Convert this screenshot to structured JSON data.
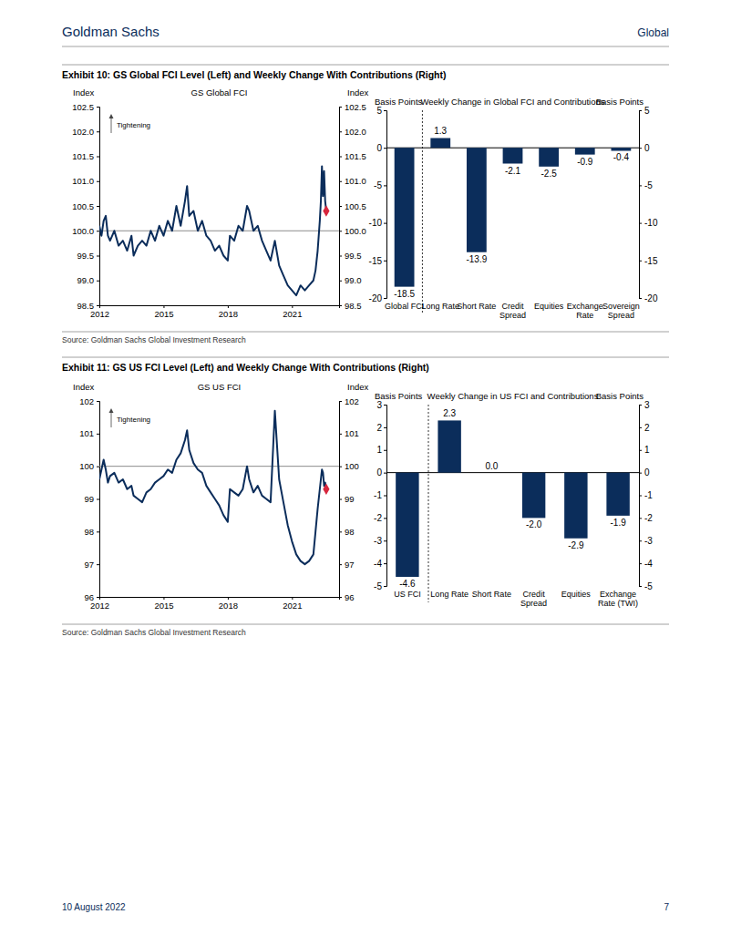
{
  "page": {
    "brand": "Goldman Sachs",
    "section": "Global",
    "date": "10 August 2022",
    "page_number": "7"
  },
  "exhibits": [
    {
      "title": "Exhibit 10: GS Global FCI Level (Left) and Weekly Change With Contributions (Right)",
      "source": "Source: Goldman Sachs Global Investment Research"
    },
    {
      "title": "Exhibit 11: GS US FCI Level (Left) and Weekly Change With Contributions (Right)",
      "source": "Source: Goldman Sachs Global Investment Research"
    }
  ],
  "chart_data": [
    {
      "type": "line",
      "title": "GS Global FCI",
      "ylabel": "Index",
      "y2label": "Index",
      "annotation": "Tightening",
      "x": [
        2012.0,
        2012.1,
        2012.2,
        2012.3,
        2012.4,
        2012.5,
        2012.7,
        2012.9,
        2013.1,
        2013.3,
        2013.5,
        2013.6,
        2013.8,
        2014.0,
        2014.2,
        2014.4,
        2014.6,
        2014.8,
        2015.0,
        2015.2,
        2015.4,
        2015.6,
        2015.8,
        2016.0,
        2016.1,
        2016.2,
        2016.4,
        2016.6,
        2016.8,
        2017.0,
        2017.2,
        2017.4,
        2017.6,
        2017.8,
        2018.0,
        2018.1,
        2018.3,
        2018.5,
        2018.7,
        2018.9,
        2019.0,
        2019.2,
        2019.4,
        2019.6,
        2019.8,
        2020.0,
        2020.2,
        2020.4,
        2020.6,
        2020.8,
        2021.0,
        2021.2,
        2021.4,
        2021.6,
        2021.8,
        2022.0,
        2022.1,
        2022.2,
        2022.3,
        2022.35,
        2022.4,
        2022.45,
        2022.5,
        2022.55,
        2022.6
      ],
      "xlim": [
        2012,
        2023.2
      ],
      "xticks": [
        2012,
        2015,
        2018,
        2021
      ],
      "ylim": [
        98.5,
        102.5
      ],
      "yticks": [
        98.5,
        {
          "value": 99,
          "label": "99.0"
        },
        99.5,
        {
          "value": 100,
          "label": "100.0"
        },
        100.5,
        {
          "value": 101,
          "label": "101.0"
        },
        101.5,
        {
          "value": 102,
          "label": "102.0"
        },
        102.5
      ],
      "y2lim": [
        98.5,
        102.5
      ],
      "y2ticks": [
        98.5,
        {
          "value": 99,
          "label": "99.0"
        },
        99.5,
        {
          "value": 100,
          "label": "100.0"
        },
        100.5,
        {
          "value": 101,
          "label": "101.0"
        },
        101.5,
        {
          "value": 102,
          "label": "102.0"
        },
        102.5
      ],
      "hline": 100,
      "series": [
        {
          "color": "#0b2d5b",
          "values": [
            100.1,
            99.9,
            100.2,
            100.3,
            99.9,
            99.8,
            100.0,
            99.7,
            99.8,
            99.6,
            99.9,
            99.5,
            99.7,
            99.8,
            99.7,
            100.0,
            99.8,
            100.1,
            99.9,
            100.2,
            100.0,
            100.5,
            100.1,
            100.6,
            100.9,
            100.3,
            100.4,
            100.0,
            100.2,
            99.9,
            99.8,
            99.6,
            99.7,
            99.5,
            99.4,
            99.9,
            99.8,
            100.1,
            100.0,
            100.5,
            100.4,
            100.0,
            100.1,
            99.8,
            99.6,
            99.4,
            99.8,
            99.3,
            99.1,
            98.9,
            98.8,
            98.7,
            98.9,
            98.8,
            98.9,
            99.0,
            99.2,
            99.6,
            100.2,
            100.6,
            101.3,
            100.7,
            101.2,
            100.6,
            100.4
          ]
        },
        {
          "type": "scatter",
          "marker": "diamond",
          "color": "#d7263d",
          "values": [
            null,
            null,
            null,
            null,
            null,
            null,
            null,
            null,
            null,
            null,
            null,
            null,
            null,
            null,
            null,
            null,
            null,
            null,
            null,
            null,
            null,
            null,
            null,
            null,
            null,
            null,
            null,
            null,
            null,
            null,
            null,
            null,
            null,
            null,
            null,
            null,
            null,
            null,
            null,
            null,
            null,
            null,
            null,
            null,
            null,
            null,
            null,
            null,
            null,
            null,
            null,
            null,
            null,
            null,
            null,
            null,
            null,
            null,
            null,
            null,
            null,
            null,
            null,
            null,
            100.4
          ]
        }
      ]
    },
    {
      "type": "bar",
      "title": "Weekly Change in Global FCI and Contributions",
      "ylabel": "Basis Points",
      "y2label": "Basis Points",
      "categories": [
        "Global FCI",
        "Long Rate",
        "Short Rate",
        "Credit\nSpread",
        "Equities",
        "Exchange\nRate",
        "Sovereign\nSpread"
      ],
      "values": [
        -18.5,
        1.3,
        -13.9,
        -2.1,
        -2.5,
        -0.9,
        -0.4
      ],
      "color": "#0b2d5b",
      "ylim": [
        -20,
        5
      ],
      "yticks": [
        -20,
        -15,
        -10,
        -5,
        0,
        5
      ],
      "y2lim": [
        -20,
        5
      ],
      "y2ticks": [
        -20,
        -15,
        -10,
        -5,
        0,
        5
      ],
      "data_labels": true
    },
    {
      "type": "line",
      "title": "GS US FCI",
      "ylabel": "Index",
      "y2label": "Index",
      "annotation": "Tightening",
      "x": [
        2012.0,
        2012.1,
        2012.2,
        2012.3,
        2012.4,
        2012.5,
        2012.7,
        2012.9,
        2013.1,
        2013.3,
        2013.5,
        2013.6,
        2013.8,
        2014.0,
        2014.2,
        2014.4,
        2014.6,
        2014.8,
        2015.0,
        2015.2,
        2015.4,
        2015.6,
        2015.8,
        2016.0,
        2016.1,
        2016.2,
        2016.4,
        2016.6,
        2016.8,
        2017.0,
        2017.2,
        2017.4,
        2017.6,
        2017.8,
        2018.0,
        2018.1,
        2018.3,
        2018.5,
        2018.7,
        2018.9,
        2019.0,
        2019.2,
        2019.4,
        2019.6,
        2019.8,
        2020.0,
        2020.2,
        2020.4,
        2020.6,
        2020.8,
        2021.0,
        2021.2,
        2021.4,
        2021.6,
        2021.8,
        2022.0,
        2022.1,
        2022.2,
        2022.3,
        2022.35,
        2022.4,
        2022.45,
        2022.5,
        2022.55,
        2022.6
      ],
      "xlim": [
        2012,
        2023.2
      ],
      "xticks": [
        2012,
        2015,
        2018,
        2021
      ],
      "ylim": [
        96,
        102
      ],
      "yticks": [
        96,
        97,
        98,
        99,
        100,
        101,
        102
      ],
      "y2lim": [
        96,
        102
      ],
      "y2ticks": [
        96,
        97,
        98,
        99,
        100,
        101,
        102
      ],
      "hline": 100,
      "series": [
        {
          "color": "#0b2d5b",
          "values": [
            99.6,
            99.9,
            100.2,
            99.9,
            99.5,
            99.7,
            99.8,
            99.5,
            99.6,
            99.3,
            99.4,
            99.1,
            99.0,
            98.9,
            99.2,
            99.3,
            99.5,
            99.6,
            99.7,
            99.9,
            99.8,
            100.2,
            100.4,
            100.8,
            101.1,
            100.5,
            100.1,
            99.9,
            99.8,
            99.4,
            99.2,
            99.0,
            98.8,
            98.5,
            98.3,
            99.3,
            99.2,
            99.1,
            99.3,
            100.0,
            99.6,
            99.2,
            99.4,
            99.1,
            99.0,
            98.9,
            101.7,
            99.6,
            98.9,
            98.2,
            97.7,
            97.3,
            97.1,
            97.0,
            97.1,
            97.3,
            98.0,
            98.7,
            99.3,
            99.6,
            99.9,
            99.8,
            99.4,
            99.5,
            99.3
          ]
        },
        {
          "type": "scatter",
          "marker": "diamond",
          "color": "#d7263d",
          "values": [
            null,
            null,
            null,
            null,
            null,
            null,
            null,
            null,
            null,
            null,
            null,
            null,
            null,
            null,
            null,
            null,
            null,
            null,
            null,
            null,
            null,
            null,
            null,
            null,
            null,
            null,
            null,
            null,
            null,
            null,
            null,
            null,
            null,
            null,
            null,
            null,
            null,
            null,
            null,
            null,
            null,
            null,
            null,
            null,
            null,
            null,
            null,
            null,
            null,
            null,
            null,
            null,
            null,
            null,
            null,
            null,
            null,
            null,
            null,
            null,
            null,
            null,
            null,
            null,
            99.3
          ]
        }
      ]
    },
    {
      "type": "bar",
      "title": "Weekly Change in US FCI and Contributions",
      "ylabel": "Basis Points",
      "y2label": "Basis Points",
      "categories": [
        "US FCI",
        "Long Rate",
        "Short Rate",
        "Credit\nSpread",
        "Equities",
        "Exchange\nRate (TWI)"
      ],
      "values": [
        -4.6,
        2.3,
        0.0,
        -2.0,
        -2.9,
        -1.9
      ],
      "value_labels": [
        "-4.6",
        "2.3",
        "0.0",
        "-2.0",
        "-2.9",
        "-1.9"
      ],
      "color": "#0b2d5b",
      "ylim": [
        -5,
        3
      ],
      "yticks": [
        -5,
        -4,
        -3,
        -2,
        -1,
        0,
        1,
        2,
        3
      ],
      "y2lim": [
        -5,
        3
      ],
      "y2ticks": [
        -5,
        -4,
        -3,
        -2,
        -1,
        0,
        1,
        2,
        3
      ],
      "data_labels": true
    }
  ]
}
